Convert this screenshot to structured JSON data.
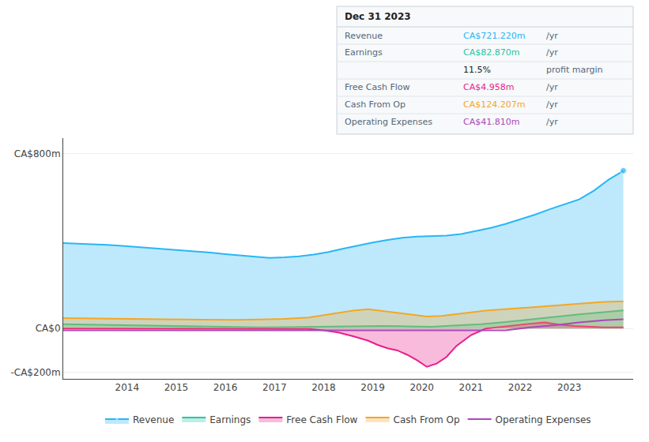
{
  "chart_data": {
    "type": "area",
    "xlim": [
      2012.7,
      2024.3
    ],
    "ylim": [
      -230,
      870
    ],
    "xticks": [
      2014,
      2015,
      2016,
      2017,
      2018,
      2019,
      2020,
      2021,
      2022,
      2023
    ],
    "yticks": [
      {
        "value": -200,
        "label": "-CA$200m"
      },
      {
        "value": 0,
        "label": "CA$0"
      },
      {
        "value": 800,
        "label": "CA$800m"
      }
    ],
    "grid": true,
    "legend": "bottom",
    "series": [
      {
        "name": "Revenue",
        "color": "#29b6f6",
        "type": "area",
        "x": [
          2012.7,
          2013.0,
          2013.3,
          2013.6,
          2013.9,
          2014.2,
          2014.5,
          2014.8,
          2015.1,
          2015.4,
          2015.7,
          2016.0,
          2016.3,
          2016.6,
          2016.9,
          2017.2,
          2017.5,
          2017.8,
          2018.1,
          2018.4,
          2018.7,
          2019.0,
          2019.3,
          2019.6,
          2019.9,
          2020.2,
          2020.5,
          2020.8,
          2021.1,
          2021.4,
          2021.7,
          2022.0,
          2022.3,
          2022.6,
          2022.9,
          2023.2,
          2023.5,
          2023.8,
          2024.1
        ],
        "values": [
          390,
          388,
          385,
          382,
          378,
          373,
          368,
          362,
          358,
          353,
          347,
          340,
          334,
          328,
          323,
          325,
          330,
          338,
          350,
          365,
          380,
          393,
          405,
          415,
          420,
          422,
          425,
          432,
          445,
          460,
          478,
          498,
          520,
          545,
          568,
          590,
          630,
          680,
          721
        ]
      },
      {
        "name": "Earnings",
        "color": "#26c6a5",
        "type": "area",
        "x": [
          2012.7,
          2013.2,
          2013.7,
          2014.2,
          2014.7,
          2015.2,
          2015.7,
          2016.2,
          2016.7,
          2017.2,
          2017.7,
          2018.2,
          2018.7,
          2019.2,
          2019.7,
          2020.2,
          2020.7,
          2021.2,
          2021.7,
          2022.2,
          2022.7,
          2023.2,
          2023.7,
          2024.1
        ],
        "values": [
          20,
          18,
          16,
          14,
          12,
          10,
          8,
          6,
          5,
          6,
          8,
          10,
          12,
          12,
          10,
          8,
          14,
          20,
          30,
          42,
          55,
          65,
          75,
          83
        ]
      },
      {
        "name": "Free Cash Flow",
        "color": "#e91e8c",
        "type": "area",
        "x": [
          2012.7,
          2013.2,
          2013.7,
          2014.2,
          2014.7,
          2015.2,
          2015.7,
          2016.2,
          2016.7,
          2017.2,
          2017.7,
          2018.0,
          2018.3,
          2018.6,
          2018.9,
          2019.1,
          2019.3,
          2019.5,
          2019.7,
          2019.9,
          2020.1,
          2020.3,
          2020.5,
          2020.7,
          2021.0,
          2021.3,
          2021.6,
          2021.9,
          2022.2,
          2022.5,
          2022.8,
          2023.1,
          2023.4,
          2023.7,
          2024.1
        ],
        "values": [
          0,
          0,
          0,
          0,
          0,
          0,
          0,
          0,
          0,
          0,
          -2,
          -8,
          -18,
          -35,
          -55,
          -75,
          -90,
          -100,
          -120,
          -145,
          -175,
          -160,
          -130,
          -80,
          -30,
          0,
          8,
          15,
          22,
          28,
          18,
          12,
          8,
          5,
          5
        ]
      },
      {
        "name": "Cash From Op",
        "color": "#f5a623",
        "type": "area",
        "x": [
          2012.7,
          2013.2,
          2013.7,
          2014.2,
          2014.7,
          2015.2,
          2015.7,
          2016.2,
          2016.7,
          2017.2,
          2017.7,
          2018.0,
          2018.3,
          2018.6,
          2018.9,
          2019.2,
          2019.5,
          2019.8,
          2020.1,
          2020.4,
          2020.7,
          2021.0,
          2021.3,
          2021.6,
          2021.9,
          2022.2,
          2022.5,
          2022.8,
          2023.1,
          2023.4,
          2023.7,
          2024.1
        ],
        "values": [
          48,
          46,
          44,
          43,
          42,
          41,
          40,
          40,
          41,
          44,
          50,
          60,
          72,
          82,
          88,
          80,
          70,
          62,
          55,
          58,
          65,
          74,
          82,
          88,
          92,
          96,
          100,
          106,
          112,
          118,
          122,
          124
        ]
      },
      {
        "name": "Operating Expenses",
        "color": "#ab47bc",
        "type": "line",
        "x": [
          2012.7,
          2013.2,
          2013.7,
          2014.2,
          2014.7,
          2015.2,
          2015.7,
          2016.2,
          2016.7,
          2017.2,
          2017.7,
          2018.2,
          2018.7,
          2019.2,
          2019.7,
          2020.2,
          2020.7,
          2021.2,
          2021.7,
          2022.2,
          2022.7,
          2023.2,
          2023.7,
          2024.1
        ],
        "values": [
          -8,
          -8,
          -8,
          -8,
          -8,
          -8,
          -8,
          -8,
          -8,
          -8,
          -8,
          -8,
          -8,
          -8,
          -8,
          -8,
          -8,
          -8,
          -8,
          5,
          15,
          28,
          38,
          42
        ]
      }
    ],
    "info_box": {
      "title": "Dec 31 2023",
      "rows": [
        {
          "label": "Revenue",
          "value": "CA$721.220m",
          "suffix": "/yr",
          "color": "#29b6f6"
        },
        {
          "label": "Earnings",
          "value": "CA$82.870m",
          "suffix": "/yr",
          "color": "#26c6a5"
        },
        {
          "value": "11.5%",
          "suffix": "profit margin"
        },
        {
          "label": "Free Cash Flow",
          "value": "CA$4.958m",
          "suffix": "/yr",
          "color": "#e91e8c"
        },
        {
          "label": "Cash From Op",
          "value": "CA$124.207m",
          "suffix": "/yr",
          "color": "#f5a623"
        },
        {
          "label": "Operating Expenses",
          "value": "CA$41.810m",
          "suffix": "/yr",
          "color": "#ab47bc"
        }
      ]
    }
  }
}
